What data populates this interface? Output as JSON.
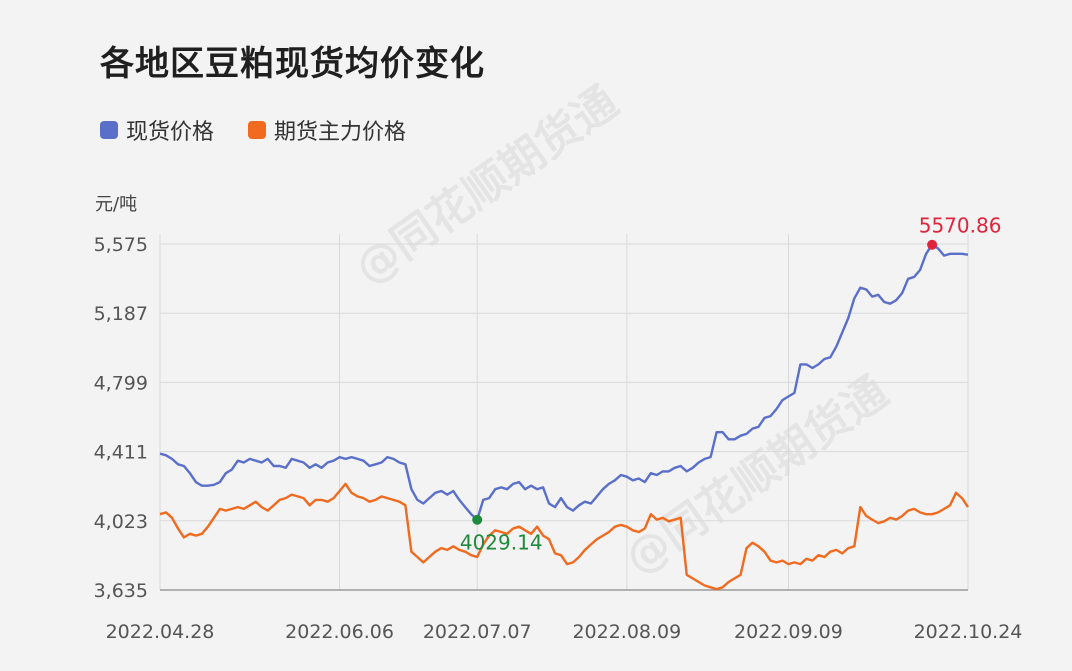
{
  "title": "各地区豆粕现货均价变化",
  "unit": "元/吨",
  "watermark": "@同花顺期货通",
  "colors": {
    "spot": "#5a6fc9",
    "futures": "#f06a1f",
    "max": "#e0243c",
    "min": "#1f8a3c",
    "grid": "#d9d9d9",
    "axis": "#555555"
  },
  "chart_data": {
    "type": "line",
    "title": "各地区豆粕现货均价变化",
    "ylabel": "元/吨",
    "ylim": [
      3635,
      5575
    ],
    "y_ticks": [
      "3,635",
      "4,023",
      "4,411",
      "4,799",
      "5,187",
      "5,575"
    ],
    "y_tick_values": [
      3635,
      4023,
      4411,
      4799,
      5187,
      5575
    ],
    "x_ticks": [
      "2022.04.28",
      "2022.06.06",
      "2022.07.07",
      "2022.08.09",
      "2022.09.09",
      "2022.10.24"
    ],
    "legend_position": "top-left",
    "grid": true,
    "annotations": {
      "max_label": "5570.86",
      "min_label": "4029.14"
    },
    "series": [
      {
        "name": "现货价格",
        "color": "#5a6fc9",
        "values": [
          4400,
          4390,
          4370,
          4340,
          4330,
          4290,
          4240,
          4220,
          4220,
          4225,
          4240,
          4290,
          4310,
          4360,
          4350,
          4370,
          4360,
          4350,
          4370,
          4330,
          4330,
          4320,
          4370,
          4360,
          4350,
          4320,
          4340,
          4320,
          4350,
          4360,
          4380,
          4370,
          4380,
          4370,
          4360,
          4330,
          4340,
          4350,
          4380,
          4370,
          4350,
          4340,
          4200,
          4140,
          4120,
          4150,
          4180,
          4190,
          4170,
          4190,
          4140,
          4100,
          4060,
          4029,
          4140,
          4150,
          4200,
          4210,
          4200,
          4230,
          4240,
          4200,
          4220,
          4200,
          4210,
          4120,
          4100,
          4150,
          4100,
          4080,
          4110,
          4130,
          4120,
          4160,
          4200,
          4230,
          4250,
          4280,
          4270,
          4250,
          4260,
          4240,
          4290,
          4280,
          4300,
          4300,
          4320,
          4330,
          4300,
          4320,
          4350,
          4370,
          4380,
          4520,
          4520,
          4480,
          4480,
          4500,
          4510,
          4540,
          4550,
          4600,
          4610,
          4650,
          4700,
          4720,
          4740,
          4900,
          4900,
          4880,
          4900,
          4930,
          4940,
          5000,
          5080,
          5160,
          5270,
          5330,
          5320,
          5280,
          5290,
          5250,
          5240,
          5260,
          5300,
          5380,
          5390,
          5430,
          5520,
          5570.86,
          5550,
          5510,
          5520,
          5520,
          5520,
          5515
        ]
      },
      {
        "name": "期货主力价格",
        "color": "#f06a1f",
        "values": [
          4060,
          4070,
          4040,
          3980,
          3930,
          3950,
          3940,
          3950,
          3990,
          4040,
          4090,
          4080,
          4090,
          4100,
          4090,
          4110,
          4130,
          4100,
          4080,
          4110,
          4140,
          4150,
          4170,
          4160,
          4150,
          4110,
          4140,
          4140,
          4130,
          4150,
          4190,
          4230,
          4180,
          4160,
          4150,
          4130,
          4140,
          4160,
          4150,
          4140,
          4130,
          4110,
          3850,
          3820,
          3790,
          3820,
          3850,
          3870,
          3860,
          3880,
          3860,
          3850,
          3830,
          3820,
          3890,
          3940,
          3970,
          3960,
          3950,
          3980,
          3990,
          3970,
          3950,
          3990,
          3940,
          3920,
          3840,
          3830,
          3780,
          3790,
          3820,
          3860,
          3890,
          3920,
          3940,
          3960,
          3990,
          4000,
          3990,
          3970,
          3960,
          3980,
          4060,
          4030,
          4040,
          4020,
          4030,
          4040,
          3720,
          3700,
          3680,
          3660,
          3650,
          3640,
          3650,
          3680,
          3700,
          3720,
          3870,
          3900,
          3880,
          3850,
          3800,
          3790,
          3800,
          3780,
          3790,
          3780,
          3810,
          3800,
          3830,
          3820,
          3850,
          3860,
          3840,
          3870,
          3880,
          4100,
          4050,
          4030,
          4010,
          4020,
          4040,
          4030,
          4050,
          4080,
          4090,
          4070,
          4060,
          4060,
          4070,
          4090,
          4110,
          4180,
          4150,
          4100
        ]
      }
    ]
  }
}
